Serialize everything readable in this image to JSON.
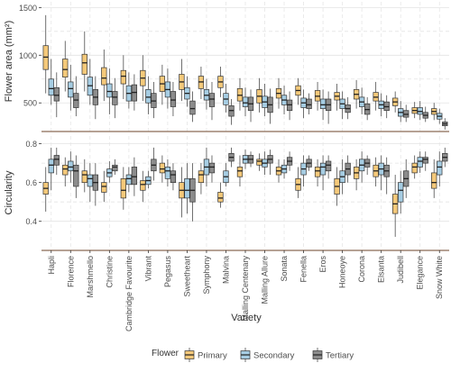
{
  "chart_data": {
    "type": "boxplot",
    "xlabel": "Variety",
    "legend": {
      "title": "Flower",
      "position": "bottom"
    },
    "categories": [
      "Hapli",
      "Florence",
      "Marshmello",
      "Christine",
      "Cambridge Favourite",
      "Vibrant",
      "Pegasus",
      "Sweetheart",
      "Symphony",
      "Malvina",
      "Malling Centenary",
      "Malling Allure",
      "Sonata",
      "Fenella",
      "Eros",
      "Honeoye",
      "Corona",
      "Elsanta",
      "Judibell",
      "Elegance",
      "Snow White"
    ],
    "series": [
      {
        "name": "Primary",
        "color": "#f5c97a"
      },
      {
        "name": "Secondary",
        "color": "#a6cde3"
      },
      {
        "name": "Tertiary",
        "color": "#8c8c8c"
      }
    ],
    "panels": [
      {
        "ylabel": "Flower area (mm²)",
        "ylim": [
          200,
          1560
        ],
        "yticks": [
          500,
          1000,
          1500
        ],
        "ytick_labels": [
          "500",
          "1000",
          "1500"
        ],
        "boxes": [
          [
            [
              600,
              850,
              980,
              1100,
              1420
            ],
            [
              480,
              580,
              650,
              750,
              960
            ],
            [
              350,
              520,
              580,
              660,
              820
            ]
          ],
          [
            [
              620,
              770,
              850,
              960,
              1150
            ],
            [
              420,
              560,
              650,
              720,
              900
            ],
            [
              360,
              450,
              530,
              600,
              780
            ]
          ],
          [
            [
              620,
              800,
              920,
              1010,
              1250
            ],
            [
              480,
              580,
              680,
              770,
              960
            ],
            [
              330,
              480,
              560,
              640,
              780
            ]
          ],
          [
            [
              520,
              690,
              760,
              870,
              1060
            ],
            [
              380,
              560,
              620,
              700,
              860
            ],
            [
              340,
              480,
              560,
              620,
              760
            ]
          ],
          [
            [
              540,
              700,
              780,
              840,
              1000
            ],
            [
              440,
              520,
              600,
              680,
              820
            ],
            [
              420,
              520,
              610,
              690,
              800
            ]
          ],
          [
            [
              520,
              680,
              760,
              840,
              1000
            ],
            [
              380,
              500,
              560,
              640,
              780
            ],
            [
              340,
              450,
              520,
              600,
              720
            ]
          ],
          [
            [
              480,
              620,
              700,
              780,
              900
            ],
            [
              440,
              560,
              640,
              720,
              860
            ],
            [
              360,
              460,
              530,
              620,
              720
            ]
          ],
          [
            [
              520,
              640,
              720,
              800,
              960
            ],
            [
              460,
              540,
              600,
              660,
              780
            ],
            [
              300,
              380,
              440,
              520,
              620
            ]
          ],
          [
            [
              540,
              650,
              720,
              780,
              880
            ],
            [
              430,
              530,
              580,
              640,
              750
            ],
            [
              320,
              460,
              540,
              600,
              720
            ]
          ],
          [
            [
              560,
              660,
              720,
              780,
              880
            ],
            [
              400,
              480,
              540,
              600,
              700
            ],
            [
              270,
              360,
              420,
              470,
              540
            ]
          ],
          [
            [
              420,
              520,
              580,
              650,
              760
            ],
            [
              360,
              460,
              500,
              560,
              660
            ],
            [
              300,
              420,
              490,
              560,
              640
            ]
          ],
          [
            [
              400,
              500,
              570,
              640,
              760
            ],
            [
              360,
              450,
              510,
              570,
              700
            ],
            [
              280,
              400,
              480,
              560,
              650
            ]
          ],
          [
            [
              440,
              550,
              600,
              650,
              760
            ],
            [
              380,
              480,
              530,
              580,
              680
            ],
            [
              320,
              420,
              480,
              530,
              620
            ]
          ],
          [
            [
              480,
              580,
              630,
              680,
              760
            ],
            [
              340,
              450,
              500,
              550,
              640
            ],
            [
              380,
              440,
              480,
              540,
              600
            ]
          ],
          [
            [
              420,
              520,
              570,
              630,
              720
            ],
            [
              320,
              440,
              480,
              540,
              640
            ],
            [
              280,
              420,
              480,
              540,
              620
            ]
          ],
          [
            [
              420,
              530,
              570,
              610,
              700
            ],
            [
              330,
              440,
              490,
              540,
              620
            ],
            [
              330,
              400,
              440,
              480,
              560
            ]
          ],
          [
            [
              440,
              540,
              590,
              640,
              740
            ],
            [
              380,
              460,
              510,
              560,
              660
            ],
            [
              320,
              380,
              430,
              490,
              560
            ]
          ],
          [
            [
              420,
              520,
              560,
              610,
              720
            ],
            [
              360,
              440,
              480,
              520,
              600
            ],
            [
              340,
              420,
              460,
              510,
              580
            ]
          ],
          [
            [
              400,
              470,
              510,
              550,
              620
            ],
            [
              300,
              360,
              400,
              440,
              520
            ],
            [
              300,
              350,
              380,
              420,
              480
            ]
          ],
          [
            [
              340,
              390,
              420,
              450,
              510
            ],
            [
              320,
              380,
              410,
              450,
              520
            ],
            [
              300,
              340,
              370,
              400,
              460
            ]
          ],
          [
            [
              320,
              380,
              410,
              440,
              500
            ],
            [
              280,
              330,
              360,
              390,
              440
            ],
            [
              220,
              260,
              280,
              300,
              340
            ]
          ]
        ]
      },
      {
        "ylabel": "Circularity",
        "ylim": [
          0.25,
          0.84
        ],
        "yticks": [
          0.4,
          0.6,
          0.8
        ],
        "ytick_labels": [
          "0.4",
          "0.6",
          "0.8"
        ],
        "boxes": [
          [
            [
              0.45,
              0.54,
              0.57,
              0.6,
              0.68
            ],
            [
              0.56,
              0.65,
              0.69,
              0.72,
              0.78
            ],
            [
              0.64,
              0.69,
              0.72,
              0.74,
              0.78
            ]
          ],
          [
            [
              0.58,
              0.64,
              0.67,
              0.69,
              0.73
            ],
            [
              0.6,
              0.66,
              0.68,
              0.71,
              0.76
            ],
            [
              0.52,
              0.58,
              0.66,
              0.69,
              0.74
            ]
          ],
          [
            [
              0.55,
              0.6,
              0.64,
              0.66,
              0.72
            ],
            [
              0.5,
              0.58,
              0.62,
              0.64,
              0.7
            ],
            [
              0.48,
              0.56,
              0.6,
              0.64,
              0.7
            ]
          ],
          [
            [
              0.5,
              0.55,
              0.58,
              0.6,
              0.66
            ],
            [
              0.6,
              0.63,
              0.65,
              0.67,
              0.71
            ],
            [
              0.64,
              0.66,
              0.68,
              0.69,
              0.72
            ]
          ],
          [
            [
              0.46,
              0.52,
              0.56,
              0.62,
              0.68
            ],
            [
              0.55,
              0.59,
              0.62,
              0.64,
              0.68
            ],
            [
              0.53,
              0.59,
              0.63,
              0.68,
              0.73
            ]
          ],
          [
            [
              0.5,
              0.56,
              0.59,
              0.61,
              0.66
            ],
            [
              0.57,
              0.59,
              0.61,
              0.63,
              0.66
            ],
            [
              0.61,
              0.66,
              0.69,
              0.72,
              0.78
            ]
          ],
          [
            [
              0.6,
              0.65,
              0.67,
              0.7,
              0.74
            ],
            [
              0.58,
              0.62,
              0.66,
              0.68,
              0.72
            ],
            [
              0.56,
              0.6,
              0.64,
              0.66,
              0.7
            ]
          ],
          [
            [
              0.42,
              0.52,
              0.56,
              0.6,
              0.68
            ],
            [
              0.44,
              0.52,
              0.56,
              0.62,
              0.7
            ],
            [
              0.4,
              0.5,
              0.56,
              0.62,
              0.7
            ]
          ],
          [
            [
              0.54,
              0.6,
              0.64,
              0.66,
              0.7
            ],
            [
              0.58,
              0.64,
              0.68,
              0.72,
              0.78
            ],
            [
              0.6,
              0.65,
              0.68,
              0.7,
              0.74
            ]
          ],
          [
            [
              0.47,
              0.5,
              0.52,
              0.55,
              0.6
            ],
            [
              0.58,
              0.6,
              0.63,
              0.66,
              0.7
            ],
            [
              0.68,
              0.71,
              0.73,
              0.75,
              0.78
            ]
          ],
          [
            [
              0.58,
              0.63,
              0.66,
              0.68,
              0.74
            ],
            [
              0.67,
              0.7,
              0.72,
              0.74,
              0.77
            ],
            [
              0.68,
              0.7,
              0.72,
              0.74,
              0.76
            ]
          ],
          [
            [
              0.66,
              0.69,
              0.71,
              0.72,
              0.75
            ],
            [
              0.64,
              0.68,
              0.7,
              0.72,
              0.76
            ],
            [
              0.64,
              0.7,
              0.72,
              0.74,
              0.77
            ]
          ],
          [
            [
              0.6,
              0.64,
              0.66,
              0.68,
              0.72
            ],
            [
              0.62,
              0.65,
              0.67,
              0.69,
              0.72
            ],
            [
              0.66,
              0.69,
              0.71,
              0.73,
              0.76
            ]
          ],
          [
            [
              0.52,
              0.56,
              0.59,
              0.62,
              0.68
            ],
            [
              0.58,
              0.64,
              0.67,
              0.7,
              0.74
            ],
            [
              0.66,
              0.68,
              0.7,
              0.72,
              0.74
            ]
          ],
          [
            [
              0.58,
              0.63,
              0.66,
              0.68,
              0.72
            ],
            [
              0.56,
              0.64,
              0.68,
              0.7,
              0.74
            ],
            [
              0.62,
              0.66,
              0.69,
              0.71,
              0.74
            ]
          ],
          [
            [
              0.48,
              0.54,
              0.58,
              0.62,
              0.68
            ],
            [
              0.54,
              0.6,
              0.63,
              0.66,
              0.72
            ],
            [
              0.6,
              0.64,
              0.67,
              0.7,
              0.74
            ]
          ],
          [
            [
              0.56,
              0.62,
              0.65,
              0.68,
              0.72
            ],
            [
              0.6,
              0.66,
              0.69,
              0.72,
              0.76
            ],
            [
              0.64,
              0.68,
              0.7,
              0.72,
              0.74
            ]
          ],
          [
            [
              0.58,
              0.63,
              0.66,
              0.69,
              0.73
            ],
            [
              0.56,
              0.64,
              0.67,
              0.7,
              0.74
            ],
            [
              0.54,
              0.63,
              0.66,
              0.69,
              0.73
            ]
          ],
          [
            [
              0.32,
              0.44,
              0.49,
              0.54,
              0.64
            ],
            [
              0.44,
              0.5,
              0.56,
              0.6,
              0.66
            ],
            [
              0.52,
              0.58,
              0.62,
              0.66,
              0.72
            ]
          ],
          [
            [
              0.62,
              0.65,
              0.68,
              0.7,
              0.74
            ],
            [
              0.65,
              0.68,
              0.71,
              0.73,
              0.76
            ],
            [
              0.66,
              0.7,
              0.72,
              0.73,
              0.76
            ]
          ],
          [
            [
              0.52,
              0.57,
              0.6,
              0.65,
              0.72
            ],
            [
              0.58,
              0.64,
              0.68,
              0.71,
              0.76
            ],
            [
              0.68,
              0.71,
              0.73,
              0.75,
              0.78
            ]
          ]
        ]
      }
    ]
  }
}
